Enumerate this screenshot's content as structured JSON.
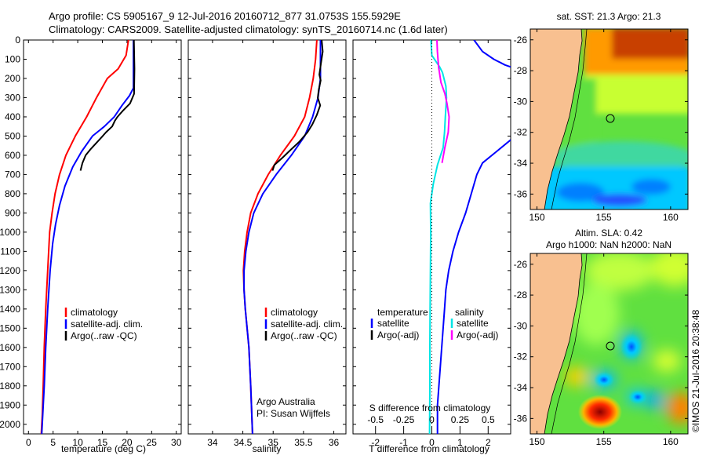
{
  "title_line1": "Argo profile: CS 5905167_9 12-Jul-2016 20160712_877 31.0753S 155.5929E",
  "title_line2": "Climatology: CARS2009. Satellite-adjusted climatology: synTS_20160714.nc (1.6d later)",
  "side_label": "©IMOS 21-Jul-2016 20:38:48",
  "depth_ticks": [
    "0",
    "100",
    "200",
    "300",
    "400",
    "500",
    "600",
    "700",
    "800",
    "900",
    "1000",
    "1100",
    "1200",
    "1300",
    "1400",
    "1500",
    "1600",
    "1700",
    "1800",
    "1900",
    "2000"
  ],
  "colors": {
    "climatology": "#ff0000",
    "satellite": "#0000ff",
    "argo": "#000000",
    "satellite_salinity": "#00e5e5",
    "argo_salinity": "#ff00ff"
  },
  "chart_data": [
    {
      "type": "line",
      "xlabel": "temperature (deg C)",
      "xlim": [
        -1,
        31
      ],
      "ylim": [
        0,
        2050
      ],
      "y_reversed": true,
      "xticks": [
        0,
        5,
        10,
        15,
        20,
        25,
        30
      ],
      "legend": [
        "climatology",
        "satellite-adj. clim.",
        "Argo(..raw -QC)"
      ],
      "series": [
        {
          "name": "climatology",
          "color": "#ff0000",
          "points": [
            [
              20.3,
              0
            ],
            [
              19.8,
              80
            ],
            [
              18.2,
              150
            ],
            [
              16.0,
              200
            ],
            [
              13.8,
              300
            ],
            [
              11.8,
              400
            ],
            [
              9.5,
              500
            ],
            [
              7.6,
              600
            ],
            [
              6.3,
              700
            ],
            [
              5.4,
              800
            ],
            [
              4.8,
              900
            ],
            [
              4.3,
              1000
            ],
            [
              3.9,
              1200
            ],
            [
              3.5,
              1400
            ],
            [
              3.2,
              1600
            ],
            [
              3.0,
              1800
            ],
            [
              2.8,
              1950
            ],
            [
              2.6,
              2050
            ]
          ]
        },
        {
          "name": "satellite-adj. clim.",
          "color": "#0000ff",
          "points": [
            [
              21.3,
              0
            ],
            [
              21.3,
              150
            ],
            [
              21.3,
              250
            ],
            [
              20.5,
              290
            ],
            [
              19.0,
              340
            ],
            [
              17.4,
              400
            ],
            [
              15.4,
              450
            ],
            [
              13.0,
              500
            ],
            [
              10.8,
              580
            ],
            [
              9.0,
              660
            ],
            [
              7.4,
              760
            ],
            [
              6.3,
              860
            ],
            [
              5.5,
              960
            ],
            [
              4.9,
              1060
            ],
            [
              4.4,
              1200
            ],
            [
              3.9,
              1400
            ],
            [
              3.5,
              1600
            ],
            [
              3.2,
              1800
            ],
            [
              2.9,
              1950
            ],
            [
              2.7,
              2050
            ]
          ]
        },
        {
          "name": "Argo(..raw -QC)",
          "color": "#000000",
          "points": [
            [
              21.4,
              0
            ],
            [
              21.3,
              150
            ],
            [
              21.2,
              280
            ],
            [
              20.6,
              330
            ],
            [
              19.3,
              370
            ],
            [
              18.3,
              400
            ],
            [
              17.6,
              420
            ],
            [
              16.8,
              450
            ],
            [
              15.5,
              480
            ],
            [
              15.0,
              500
            ],
            [
              13.8,
              540
            ],
            [
              12.8,
              570
            ],
            [
              11.7,
              600
            ],
            [
              10.8,
              640
            ],
            [
              10.3,
              680
            ]
          ]
        }
      ]
    },
    {
      "type": "line",
      "xlabel": "salinity",
      "xlim": [
        33.6,
        36.2
      ],
      "ylim": [
        0,
        2050
      ],
      "y_reversed": true,
      "xticks": [
        34,
        34.5,
        35,
        35.5,
        36
      ],
      "xtick_labels": [
        "34",
        "34.5",
        "35",
        "35.5",
        "36"
      ],
      "legend": [
        "climatology",
        "satellite-adj. clim.",
        "Argo(..raw -QC)"
      ],
      "annotation": [
        "Argo Australia",
        "PI: Susan Wijffels"
      ],
      "series": [
        {
          "name": "climatology",
          "color": "#ff0000",
          "points": [
            [
              35.72,
              0
            ],
            [
              35.7,
              100
            ],
            [
              35.66,
              200
            ],
            [
              35.6,
              300
            ],
            [
              35.52,
              400
            ],
            [
              35.35,
              500
            ],
            [
              35.12,
              600
            ],
            [
              34.92,
              700
            ],
            [
              34.75,
              800
            ],
            [
              34.63,
              900
            ],
            [
              34.57,
              1000
            ],
            [
              34.53,
              1100
            ],
            [
              34.51,
              1200
            ],
            [
              34.52,
              1300
            ],
            [
              34.54,
              1400
            ],
            [
              34.57,
              1500
            ],
            [
              34.6,
              1600
            ],
            [
              34.63,
              1800
            ],
            [
              34.66,
              2050
            ]
          ]
        },
        {
          "name": "satellite-adj. clim.",
          "color": "#0000ff",
          "points": [
            [
              35.78,
              0
            ],
            [
              35.78,
              100
            ],
            [
              35.78,
              200
            ],
            [
              35.74,
              300
            ],
            [
              35.65,
              400
            ],
            [
              35.52,
              500
            ],
            [
              35.3,
              600
            ],
            [
              35.05,
              700
            ],
            [
              34.83,
              800
            ],
            [
              34.68,
              900
            ],
            [
              34.6,
              1000
            ],
            [
              34.55,
              1100
            ],
            [
              34.52,
              1200
            ],
            [
              34.52,
              1300
            ],
            [
              34.54,
              1400
            ],
            [
              34.57,
              1500
            ],
            [
              34.6,
              1600
            ],
            [
              34.63,
              1800
            ],
            [
              34.66,
              2050
            ]
          ]
        },
        {
          "name": "Argo(..raw -QC)",
          "color": "#000000",
          "points": [
            [
              35.8,
              0
            ],
            [
              35.8,
              60
            ],
            [
              35.77,
              120
            ],
            [
              35.76,
              180
            ],
            [
              35.8,
              210
            ],
            [
              35.77,
              260
            ],
            [
              35.74,
              300
            ],
            [
              35.76,
              340
            ],
            [
              35.7,
              390
            ],
            [
              35.64,
              440
            ],
            [
              35.58,
              480
            ],
            [
              35.45,
              530
            ],
            [
              35.3,
              570
            ],
            [
              35.15,
              610
            ],
            [
              35.0,
              650
            ],
            [
              34.98,
              680
            ]
          ]
        }
      ]
    },
    {
      "type": "line",
      "xlabel": "T difference from climatology",
      "xlabel_top": "S difference from climatology",
      "xlim": [
        -2.8,
        2.8
      ],
      "ylim": [
        0,
        2050
      ],
      "y_reversed": true,
      "xticks": [
        -2,
        -1,
        0,
        1,
        2
      ],
      "xticks_top": [
        -0.5,
        -0.25,
        0,
        0.25,
        0.5
      ],
      "xtick_labels_top": [
        "-0.5",
        "-0.25",
        "0",
        "0.25",
        "0.5"
      ],
      "legend_headers": [
        "temperature",
        "salinity"
      ],
      "legend": [
        "satellite",
        "Argo(-adj)",
        "satellite",
        "Argo(-adj)"
      ],
      "series": [
        {
          "name": "satellite",
          "color": "#0000ff",
          "points": [
            [
              1.5,
              0
            ],
            [
              1.8,
              60
            ],
            [
              2.2,
              100
            ],
            [
              2.6,
              130
            ],
            [
              2.8,
              140
            ]
          ]
        },
        {
          "name": "satellite",
          "color": "#0000ff",
          "points": [
            [
              2.8,
              520
            ],
            [
              2.3,
              580
            ],
            [
              1.8,
              640
            ],
            [
              1.6,
              700
            ],
            [
              1.4,
              800
            ],
            [
              1.2,
              900
            ],
            [
              0.95,
              1000
            ],
            [
              0.75,
              1100
            ],
            [
              0.6,
              1200
            ],
            [
              0.5,
              1300
            ],
            [
              0.45,
              1400
            ],
            [
              0.4,
              1500
            ],
            [
              0.35,
              1600
            ],
            [
              0.3,
              1700
            ],
            [
              0.25,
              1800
            ],
            [
              0.2,
              1900
            ],
            [
              0.2,
              2050
            ]
          ]
        },
        {
          "name": "satellite",
          "color": "#00e5e5",
          "points": [
            [
              -0.03,
              0
            ],
            [
              0.0,
              80
            ],
            [
              0.28,
              140
            ],
            [
              0.38,
              170
            ],
            [
              0.5,
              240
            ],
            [
              0.52,
              300
            ],
            [
              0.48,
              400
            ],
            [
              0.45,
              480
            ],
            [
              0.4,
              560
            ],
            [
              0.2,
              650
            ],
            [
              0.05,
              750
            ],
            [
              -0.05,
              850
            ],
            [
              -0.04,
              1000
            ],
            [
              -0.05,
              1200
            ],
            [
              -0.06,
              1400
            ],
            [
              -0.07,
              1600
            ],
            [
              -0.07,
              1800
            ],
            [
              -0.08,
              2050
            ]
          ]
        },
        {
          "name": "Argo(-adj)",
          "color": "#ff00ff",
          "points": [
            [
              0.18,
              0
            ],
            [
              0.16,
              60
            ],
            [
              0.2,
              140
            ],
            [
              0.32,
              220
            ],
            [
              0.5,
              280
            ],
            [
              0.58,
              330
            ],
            [
              0.62,
              400
            ],
            [
              0.55,
              480
            ],
            [
              0.42,
              560
            ],
            [
              0.35,
              640
            ]
          ]
        }
      ]
    },
    {
      "type": "heatmap",
      "title": "sat. SST: 21.3 Argo: 21.3",
      "xticks": [
        150,
        155,
        160
      ],
      "yticks": [
        -26,
        -28,
        -30,
        -32,
        -34,
        -36
      ],
      "xlim": [
        149.5,
        161.3
      ],
      "ylim": [
        -37,
        -25.3
      ]
    },
    {
      "type": "heatmap",
      "title": "Altim. SLA: 0.42",
      "subtitle": "Argo h1000: NaN h2000: NaN",
      "xticks": [
        150,
        155,
        160
      ],
      "yticks": [
        -26,
        -28,
        -30,
        -32,
        -34,
        -36
      ],
      "xlim": [
        149.5,
        161.3
      ],
      "ylim": [
        -37,
        -25.3
      ]
    }
  ]
}
